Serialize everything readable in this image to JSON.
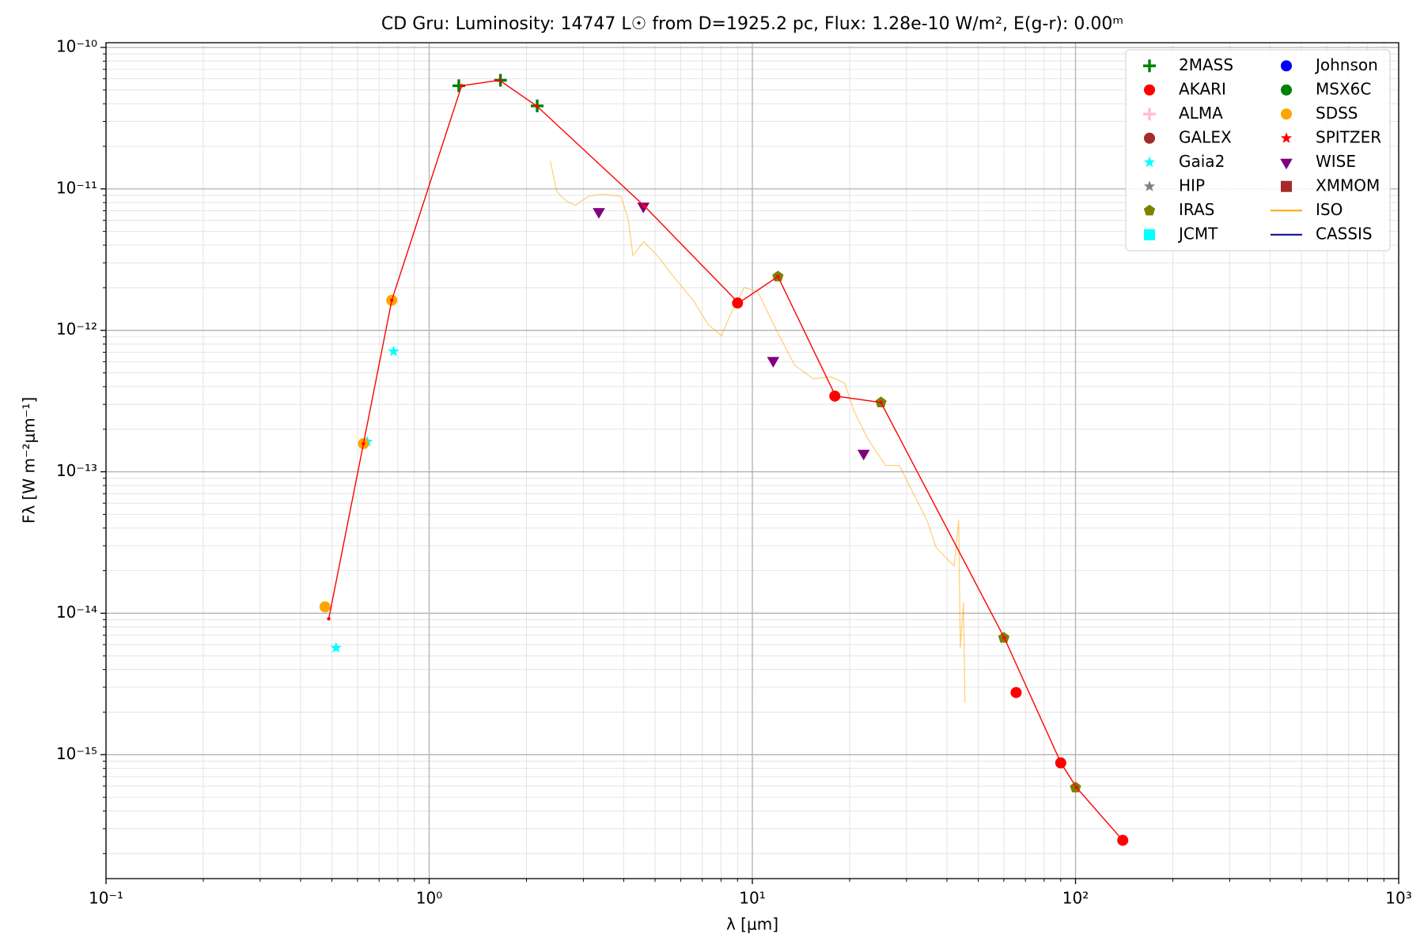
{
  "chart_data": {
    "type": "scatter",
    "title": "CD Gru:  Luminosity: 14747 L☉ from D=1925.2 pc, Flux: 1.28e-10 W/m², E(g-r): 0.00ᵐ",
    "x_label": "λ [μm]",
    "y_label": "Fλ [W m⁻²μm⁻¹]",
    "x_log": true,
    "y_log": true,
    "grid": true,
    "minor_grid": true,
    "legend_position": "upper right",
    "xlim": [
      0.1,
      1000
    ],
    "ylim": [
      1.33e-16,
      1.08e-10
    ],
    "xticks": [
      {
        "value": 0.1,
        "label": "10⁻¹"
      },
      {
        "value": 1,
        "label": "10⁰"
      },
      {
        "value": 10,
        "label": "10¹"
      },
      {
        "value": 100,
        "label": "10²"
      },
      {
        "value": 1000,
        "label": "10³"
      }
    ],
    "yticks": [
      {
        "value": 1e-15,
        "label": "10⁻¹⁵"
      },
      {
        "value": 1e-14,
        "label": "10⁻¹⁴"
      },
      {
        "value": 1e-13,
        "label": "10⁻¹³"
      },
      {
        "value": 1e-12,
        "label": "10⁻¹²"
      },
      {
        "value": 1e-11,
        "label": "10⁻¹¹"
      },
      {
        "value": 1e-10,
        "label": "10⁻¹⁰"
      }
    ],
    "series": [
      {
        "name": "2MASS",
        "color": "#008000",
        "marker": "plus",
        "x": [
          1.235,
          1.662,
          2.159
        ],
        "values": [
          5.36e-11,
          5.86e-11,
          3.86e-11
        ]
      },
      {
        "name": "AKARI",
        "color": "#ff0000",
        "marker": "circle",
        "x": [
          9,
          18,
          65.5,
          90,
          140
        ],
        "values": [
          1.56e-12,
          3.43e-13,
          2.75e-15,
          8.75e-16,
          2.48e-16
        ]
      },
      {
        "name": "ALMA",
        "color": "#ffc0cb",
        "marker": "plus",
        "x": [],
        "values": []
      },
      {
        "name": "GALEX",
        "color": "#a52a2a",
        "marker": "circle",
        "x": [],
        "values": []
      },
      {
        "name": "Gaia2",
        "color": "#00ffff",
        "marker": "star",
        "x": [
          0.515,
          0.643,
          0.776
        ],
        "values": [
          5.69e-15,
          1.63e-13,
          7.1e-13
        ]
      },
      {
        "name": "HIP",
        "color": "#808080",
        "marker": "star",
        "x": [],
        "values": []
      },
      {
        "name": "IRAS",
        "color": "#808000",
        "marker": "pentagon",
        "x": [
          12,
          25,
          60,
          100
        ],
        "values": [
          2.4e-12,
          3.09e-13,
          6.7e-15,
          5.86e-16
        ]
      },
      {
        "name": "JCMT",
        "color": "#00ffff",
        "marker": "square",
        "x": [],
        "values": []
      },
      {
        "name": "Johnson",
        "color": "#0000ff",
        "marker": "circle",
        "x": [],
        "values": []
      },
      {
        "name": "MSX6C",
        "color": "#008000",
        "marker": "circle",
        "x": [],
        "values": []
      },
      {
        "name": "SDSS",
        "color": "#ffa500",
        "marker": "circle",
        "x": [
          0.476,
          0.626,
          0.766
        ],
        "values": [
          1.11e-14,
          1.58e-13,
          1.63e-12
        ]
      },
      {
        "name": "SPITZER",
        "color": "#ff0000",
        "marker": "star",
        "x": [],
        "values": []
      },
      {
        "name": "WISE",
        "color": "#800080",
        "marker": "triangle_down",
        "x": [
          3.35,
          4.6,
          11.6,
          22.1
        ],
        "values": [
          6.9e-12,
          7.54e-12,
          6.12e-13,
          1.35e-13
        ]
      },
      {
        "name": "XMMOM",
        "color": "#a52a2a",
        "marker": "square",
        "x": [],
        "values": []
      },
      {
        "name": "ISO",
        "color": "#ffa500",
        "marker": "line",
        "x": [
          2.37,
          2.48,
          2.65,
          2.83,
          3.12,
          3.44,
          3.92,
          4.13,
          4.27,
          4.61,
          5.08,
          5.61,
          6.59,
          7.27,
          8.02,
          8.55,
          9.44,
          10.4,
          11.8,
          13.5,
          15.4,
          17.5,
          19.3,
          20.6,
          22.7,
          25.8,
          28.5,
          31.4,
          34.7,
          37.0,
          39.5,
          42.1,
          43.5,
          44.0,
          45.0,
          45.5
        ],
        "values": [
          1.58e-11,
          9.57e-12,
          8.24e-12,
          7.65e-12,
          8.88e-12,
          9.15e-12,
          8.88e-12,
          6.12e-12,
          3.38e-12,
          4.23e-12,
          3.38e-12,
          2.51e-12,
          1.61e-12,
          1.11e-12,
          9.15e-13,
          1.29e-12,
          2.01e-12,
          1.87e-12,
          1.03e-12,
          5.69e-13,
          4.55e-13,
          4.69e-13,
          4.23e-13,
          2.71e-13,
          1.73e-13,
          1.11e-13,
          1.11e-13,
          7.11e-14,
          4.55e-14,
          2.92e-14,
          2.51e-14,
          2.16e-14,
          4.55e-14,
          5.69e-15,
          1.19e-14,
          2.33e-15
        ]
      },
      {
        "name": "CASSIS",
        "color": "#00008b",
        "marker": "line",
        "x": [],
        "values": []
      },
      {
        "color": "#ff0000",
        "marker": "model",
        "x": [
          0.489,
          0.626,
          0.766,
          1.26,
          1.65,
          2.15,
          4.64,
          9.07,
          12.0,
          18.1,
          25.0,
          60.2,
          90.1,
          100.7,
          140
        ],
        "values": [
          9.14e-15,
          1.58e-13,
          1.63e-12,
          5.36e-11,
          5.86e-11,
          3.86e-11,
          7.54e-12,
          1.56e-12,
          2.4e-12,
          3.43e-13,
          3.09e-13,
          6.7e-15,
          8.75e-16,
          5.86e-16,
          2.48e-16
        ]
      }
    ]
  }
}
